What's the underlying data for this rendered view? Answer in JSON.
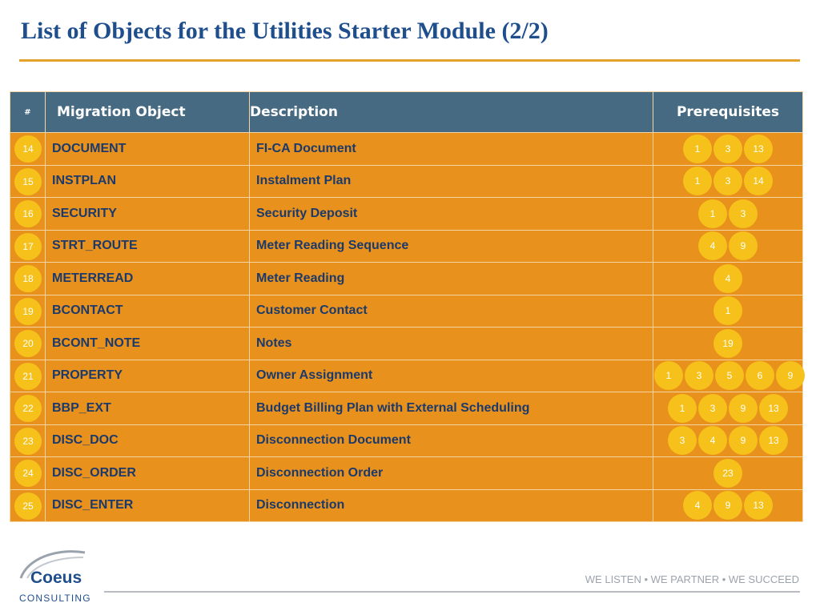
{
  "title": "List of Objects for the Utilities Starter Module (2/2)",
  "table": {
    "headers": {
      "num": "#",
      "object": "Migration Object",
      "description": "Description",
      "prerequisites": "Prerequisites"
    },
    "rows": [
      {
        "num": "14",
        "object": "DOCUMENT",
        "description": "FI-CA Document",
        "prereqs": [
          "1",
          "3",
          "13"
        ]
      },
      {
        "num": "15",
        "object": "INSTPLAN",
        "description": "Instalment Plan",
        "prereqs": [
          "1",
          "3",
          "14"
        ]
      },
      {
        "num": "16",
        "object": "SECURITY",
        "description": "Security Deposit",
        "prereqs": [
          "1",
          "3"
        ]
      },
      {
        "num": "17",
        "object": "STRT_ROUTE",
        "description": "Meter Reading Sequence",
        "prereqs": [
          "4",
          "9"
        ]
      },
      {
        "num": "18",
        "object": "METERREAD",
        "description": "Meter Reading",
        "prereqs": [
          "4"
        ]
      },
      {
        "num": "19",
        "object": "BCONTACT",
        "description": "Customer Contact",
        "prereqs": [
          "1"
        ]
      },
      {
        "num": "20",
        "object": "BCONT_NOTE",
        "description": "Notes",
        "prereqs": [
          "19"
        ]
      },
      {
        "num": "21",
        "object": "PROPERTY",
        "description": "Owner Assignment",
        "prereqs": [
          "1",
          "3",
          "5",
          "6",
          "9"
        ]
      },
      {
        "num": "22",
        "object": "BBP_EXT",
        "description": "Budget Billing Plan with External Scheduling",
        "prereqs": [
          "1",
          "3",
          "9",
          "13"
        ]
      },
      {
        "num": "23",
        "object": "DISC_DOC",
        "description": "Disconnection Document",
        "prereqs": [
          "3",
          "4",
          "9",
          "13"
        ]
      },
      {
        "num": "24",
        "object": "DISC_ORDER",
        "description": "Disconnection Order",
        "prereqs": [
          "23"
        ]
      },
      {
        "num": "25",
        "object": "DISC_ENTER",
        "description": "Disconnection",
        "prereqs": [
          "4",
          "9",
          "13"
        ]
      }
    ]
  },
  "logo": {
    "name": "Coeus",
    "sub": "CONSULTING"
  },
  "tagline": "WE LISTEN  •  WE PARTNER  •  WE SUCCEED",
  "colors": {
    "title": "#1f4e8c",
    "header_bg": "#456a82",
    "row_bg": "#e8911c",
    "badge": "#f5c11a",
    "accent_rule": "#e3a22b"
  }
}
